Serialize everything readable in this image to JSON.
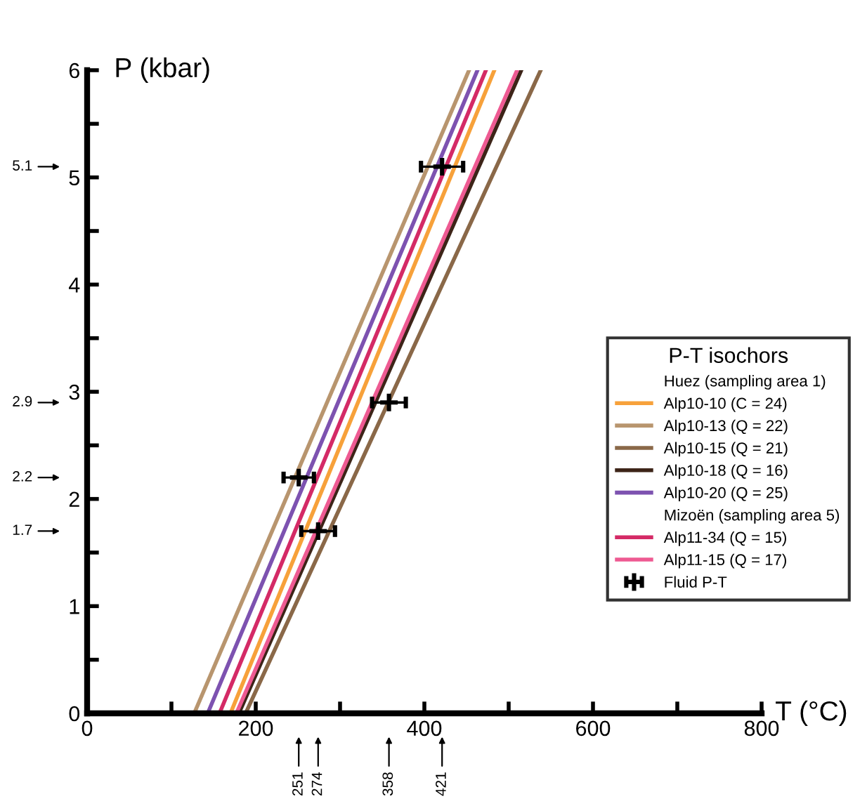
{
  "chart_data": {
    "type": "line",
    "xlabel": "T (°C)",
    "ylabel": "P (kbar)",
    "legend_title": "P-T isochors",
    "xlim": [
      0,
      800
    ],
    "ylim": [
      0,
      6
    ],
    "xticks": [
      0,
      {
        "value": 100,
        "label": null
      },
      200,
      {
        "value": 300,
        "label": null
      },
      400,
      {
        "value": 500,
        "label": null
      },
      600,
      {
        "value": 700,
        "label": null
      },
      800
    ],
    "yticks": [
      0,
      {
        "value": 0.5,
        "label": null
      },
      1,
      {
        "value": 1.5,
        "label": null
      },
      2,
      {
        "value": 2.5,
        "label": null
      },
      3,
      {
        "value": 3.5,
        "label": null
      },
      4,
      {
        "value": 4.5,
        "label": null
      },
      5,
      {
        "value": 5.5,
        "label": null
      },
      6
    ],
    "grid": false,
    "legend": "right",
    "marker": "none",
    "line_style": "solid",
    "series": [
      {
        "name": "Alp10-10 (C = 24)",
        "color": "#f7a13a",
        "x": [
          170,
          483
        ],
        "values": [
          0,
          6
        ]
      },
      {
        "name": "Alp10-13 (Q = 22)",
        "color": "#b8956e",
        "x": [
          127,
          453
        ],
        "values": [
          0,
          6
        ]
      },
      {
        "name": "Alp10-15 (Q = 21)",
        "color": "#8a6848",
        "x": [
          188,
          538
        ],
        "values": [
          0,
          6
        ]
      },
      {
        "name": "Alp10-18 (Q = 16)",
        "color": "#3d2418",
        "x": [
          180,
          515
        ],
        "values": [
          0,
          6
        ]
      },
      {
        "name": "Alp10-20 (Q = 25)",
        "color": "#7d52b0",
        "x": [
          143,
          463
        ],
        "values": [
          0,
          6
        ]
      },
      {
        "name": "Alp11-34 (Q = 15)",
        "color": "#d42a66",
        "x": [
          157,
          473
        ],
        "values": [
          0,
          6
        ]
      },
      {
        "name": "Alp11-15 (Q = 17)",
        "color": "#ee5a92",
        "x": [
          177,
          510
        ],
        "values": [
          0,
          6
        ]
      },
      {
        "name": "Fluid P-T",
        "type": "scatter",
        "marker": "cross",
        "color": "#000000",
        "x": [
          421,
          358,
          251,
          274
        ],
        "values": [
          5.1,
          2.9,
          2.2,
          1.7
        ],
        "xerrors": [
          25,
          20,
          18,
          20
        ]
      }
    ],
    "annotations": [
      "Huez (sampling area 1)",
      "Mizoën (sampling area 5)",
      "5.1",
      "2.9",
      "2.2",
      "1.7",
      "251",
      "274",
      "358",
      "421"
    ]
  }
}
